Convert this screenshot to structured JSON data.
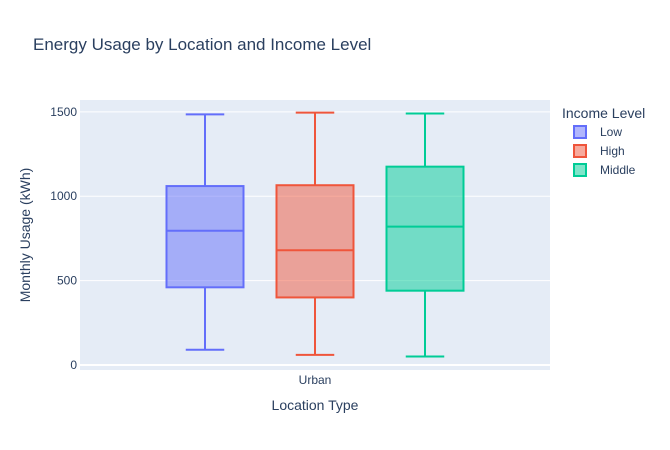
{
  "chart_data": {
    "type": "box",
    "title": "Energy Usage by Location and Income Level",
    "xlabel": "Location Type",
    "ylabel": "Monthly Usage (kWh)",
    "categories": [
      "Urban"
    ],
    "ylim": [
      -30,
      1570
    ],
    "yticks": [
      0,
      500,
      1000,
      1500
    ],
    "grid": true,
    "legend_title": "Income Level",
    "legend_position": "right",
    "series": [
      {
        "name": "Low",
        "color": "#636efa",
        "min": 90,
        "q1": 460,
        "median": 795,
        "q3": 1060,
        "max": 1485
      },
      {
        "name": "High",
        "color": "#ef553b",
        "min": 60,
        "q1": 400,
        "median": 680,
        "q3": 1065,
        "max": 1495
      },
      {
        "name": "Middle",
        "color": "#00cc96",
        "min": 50,
        "q1": 440,
        "median": 820,
        "q3": 1175,
        "max": 1490
      }
    ]
  }
}
